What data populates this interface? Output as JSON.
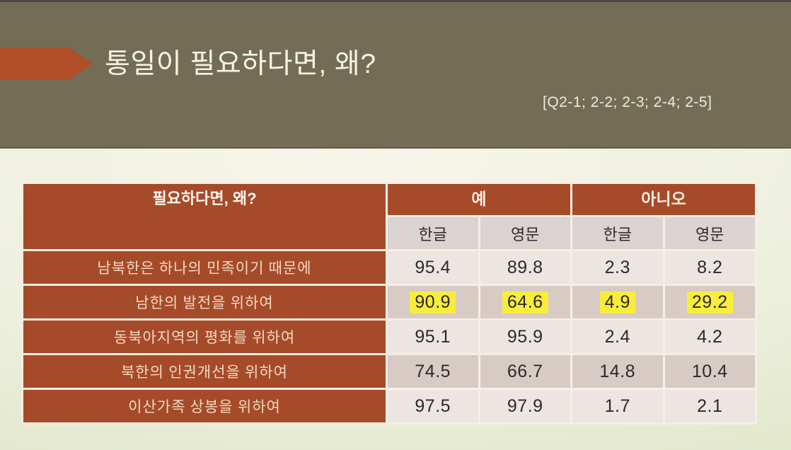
{
  "slide": {
    "title": "통일이 필요하다면, 왜?",
    "subtitle": "[Q2-1; 2-2; 2-3; 2-4; 2-5]"
  },
  "table": {
    "corner_header": "필요하다면, 왜?",
    "group_headers": [
      "예",
      "아니오"
    ],
    "subheaders": [
      "한글",
      "영문",
      "한글",
      "영문"
    ],
    "rows": [
      {
        "label": "남북한은 하나의 민족이기 때문에",
        "values": [
          "95.4",
          "89.8",
          "2.3",
          "8.2"
        ],
        "highlight": false
      },
      {
        "label": "남한의 발전을 위하여",
        "values": [
          "90.9",
          "64.6",
          "4.9",
          "29.2"
        ],
        "highlight": true
      },
      {
        "label": "동북아지역의 평화를 위하여",
        "values": [
          "95.1",
          "95.9",
          "2.4",
          "4.2"
        ],
        "highlight": false
      },
      {
        "label": "북한의 인권개선을 위하여",
        "values": [
          "74.5",
          "66.7",
          "14.8",
          "10.4"
        ],
        "highlight": false
      },
      {
        "label": "이산가족 상봉을 위하여",
        "values": [
          "97.5",
          "97.9",
          "1.7",
          "2.1"
        ],
        "highlight": false
      }
    ]
  },
  "colors": {
    "rust_accent": "#a64b2a",
    "arrow_rust": "#b14d28",
    "olive_band": "#746d56",
    "highlight_yellow": "#f8ed3b",
    "light_row": "#ece5e2",
    "dark_row": "#d8cbc6",
    "subheader_bg": "#dad3d1",
    "grid_cream": "#f5efe3"
  }
}
